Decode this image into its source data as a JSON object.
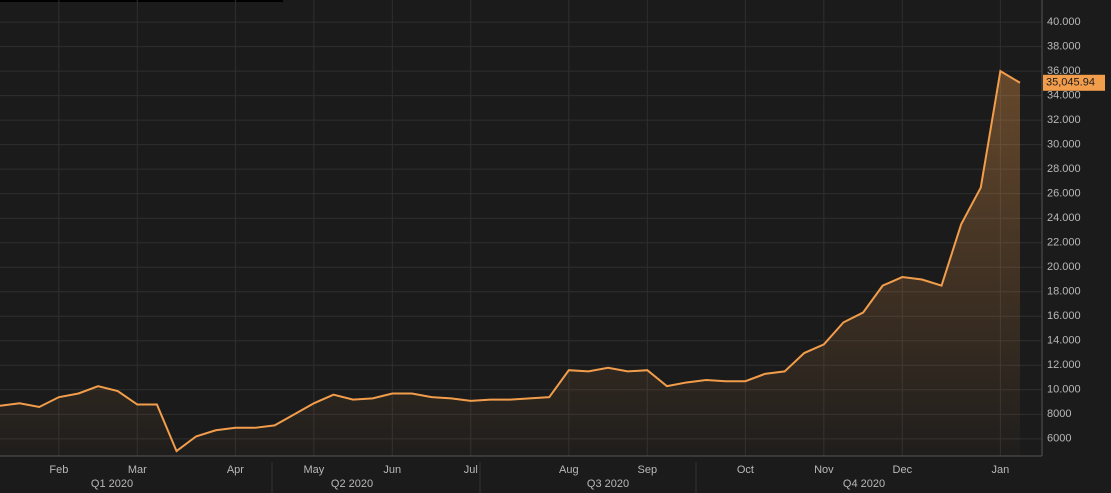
{
  "chart_data": {
    "type": "line",
    "categories": [
      null,
      null,
      null,
      "Feb",
      null,
      null,
      null,
      "Mar",
      null,
      null,
      null,
      null,
      "Apr",
      null,
      null,
      null,
      "May",
      null,
      null,
      null,
      "Jun",
      null,
      null,
      null,
      "Jul",
      null,
      null,
      null,
      null,
      "Aug",
      null,
      null,
      null,
      "Sep",
      null,
      null,
      null,
      null,
      "Oct",
      null,
      null,
      null,
      "Nov",
      null,
      null,
      null,
      "Dec",
      null,
      null,
      null,
      null,
      "Jan",
      null
    ],
    "values": [
      8700,
      8900,
      8600,
      9400,
      9700,
      10300,
      9900,
      8800,
      8800,
      5000,
      6200,
      6700,
      6900,
      6900,
      7100,
      8000,
      8900,
      9600,
      9200,
      9300,
      9700,
      9700,
      9400,
      9300,
      9100,
      9200,
      9200,
      9300,
      9400,
      11600,
      11500,
      11800,
      11500,
      11600,
      10300,
      10600,
      10800,
      10700,
      10700,
      11300,
      11500,
      13000,
      13700,
      15500,
      16300,
      18500,
      19200,
      19000,
      18500,
      23500,
      26500,
      36000,
      35045.94
    ],
    "value_labels": [
      null,
      null,
      null,
      null,
      null,
      null,
      null,
      null,
      null,
      null,
      null,
      null,
      null,
      null,
      null,
      null,
      null,
      null,
      null,
      null,
      null,
      null,
      null,
      null,
      null,
      null,
      null,
      null,
      null,
      null,
      null,
      null,
      null,
      null,
      null,
      null,
      null,
      null,
      null,
      null,
      null,
      null,
      null,
      null,
      null,
      null,
      null,
      null,
      null,
      null,
      null,
      null,
      "35,045.94"
    ],
    "x_groups": [
      "Q1 2020",
      "Q2 2020",
      "Q3 2020",
      "Q4 2020"
    ],
    "color": "#f29d4b",
    "ylim": [
      4600,
      41800
    ],
    "yticks": [
      6000,
      8000,
      {
        "value": 10000,
        "label": "10.000"
      },
      {
        "value": 12000,
        "label": "12.000"
      },
      {
        "value": 14000,
        "label": "14.000"
      },
      {
        "value": 16000,
        "label": "16.000"
      },
      {
        "value": 18000,
        "label": "18.000"
      },
      {
        "value": 20000,
        "label": "20.000"
      },
      {
        "value": 22000,
        "label": "22.000"
      },
      {
        "value": 24000,
        "label": "24.000"
      },
      {
        "value": 26000,
        "label": "26.000"
      },
      {
        "value": 28000,
        "label": "28.000"
      },
      {
        "value": 30000,
        "label": "30.000"
      },
      {
        "value": 32000,
        "label": "32.000"
      },
      {
        "value": 34000,
        "label": "34.000"
      },
      {
        "value": 36000,
        "label": "36.000"
      },
      {
        "value": 38000,
        "label": "38.000"
      },
      {
        "value": 40000,
        "label": "40.000"
      }
    ],
    "grid": true
  }
}
